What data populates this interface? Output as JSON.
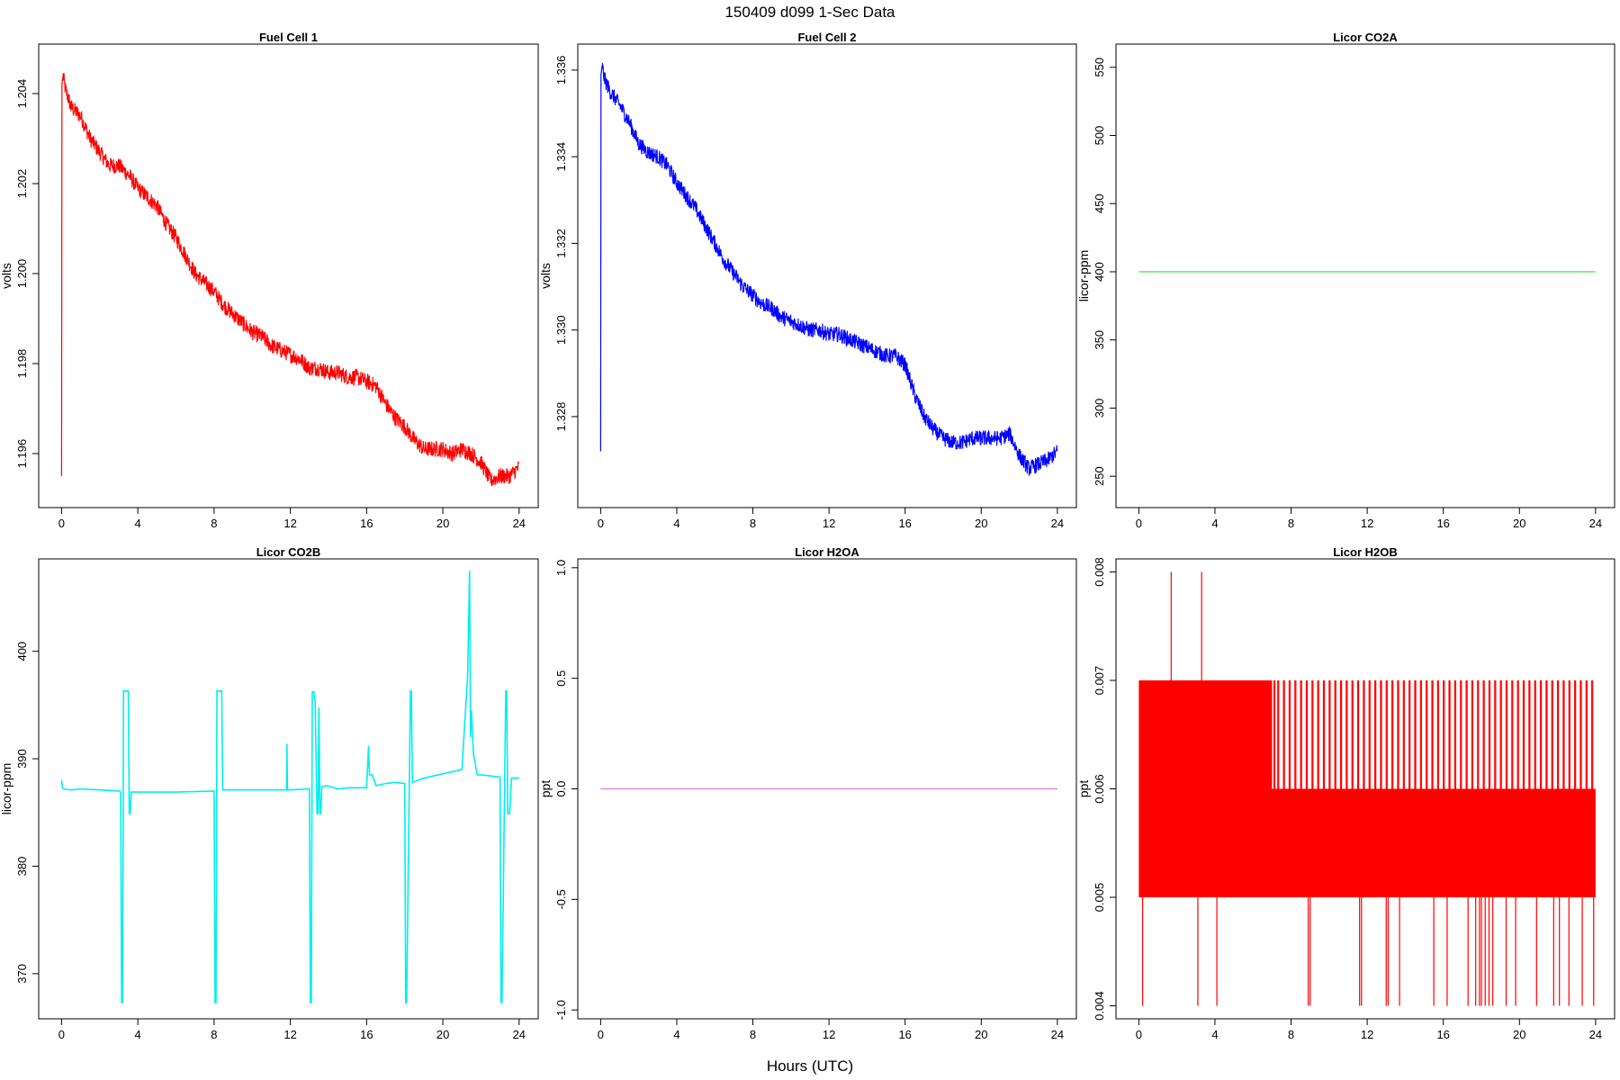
{
  "figure": {
    "title": "150409   d099   1-Sec Data",
    "xlabel": "Hours (UTC)"
  },
  "chart_data": [
    {
      "type": "line",
      "title": "Fuel Cell 1",
      "xlabel": "",
      "ylabel": "volts",
      "color": "#ff0000",
      "xlim": [
        -1.2,
        25
      ],
      "ylim": [
        1.1948,
        1.2051
      ],
      "xticks": [
        0,
        4,
        8,
        12,
        16,
        20,
        24
      ],
      "yticks": [
        1.196,
        1.198,
        1.2,
        1.202,
        1.204
      ],
      "ytick_labels": [
        "1.196",
        "1.198",
        "1.200",
        "1.202",
        "1.204"
      ],
      "series": [
        {
          "x": [
            0,
            0.02,
            0.08,
            0.2,
            0.5,
            1,
            1.5,
            2,
            2.5,
            3,
            3.5,
            4,
            4.5,
            5,
            5.5,
            6,
            6.5,
            7,
            7.5,
            8,
            8.5,
            9,
            9.5,
            10,
            10.5,
            11,
            11.5,
            12,
            12.5,
            13,
            13.5,
            14,
            14.5,
            15,
            15.5,
            16,
            16.5,
            17,
            17.5,
            18,
            18.5,
            19,
            19.5,
            20,
            20.5,
            21,
            21.5,
            22,
            22.5,
            23,
            23.5,
            24
          ],
          "y": [
            1.1955,
            1.2042,
            1.2044,
            1.2041,
            1.2037,
            1.2035,
            1.203,
            1.2027,
            1.2024,
            1.2024,
            1.2022,
            1.2019,
            1.2017,
            1.2015,
            1.2011,
            1.2008,
            1.2004,
            1.2,
            1.1998,
            1.1996,
            1.1993,
            1.1991,
            1.1989,
            1.1987,
            1.1986,
            1.1984,
            1.1983,
            1.1982,
            1.1981,
            1.1979,
            1.1979,
            1.1978,
            1.1978,
            1.1977,
            1.1977,
            1.1976,
            1.1975,
            1.1971,
            1.1968,
            1.1966,
            1.1963,
            1.1961,
            1.1961,
            1.1961,
            1.196,
            1.1961,
            1.196,
            1.1958,
            1.1954,
            1.1955,
            1.1955,
            1.1957
          ],
          "noise": 0.00018
        }
      ]
    },
    {
      "type": "line",
      "title": "Fuel Cell 2",
      "xlabel": "",
      "ylabel": "volts",
      "color": "#0000ff",
      "xlim": [
        -1.2,
        25
      ],
      "ylim": [
        1.3259,
        1.3366
      ],
      "xticks": [
        0,
        4,
        8,
        12,
        16,
        20,
        24
      ],
      "yticks": [
        1.328,
        1.33,
        1.332,
        1.334,
        1.336
      ],
      "ytick_labels": [
        "1.328",
        "1.330",
        "1.332",
        "1.334",
        "1.336"
      ],
      "series": [
        {
          "x": [
            0,
            0.02,
            0.08,
            0.2,
            0.5,
            1,
            1.5,
            2,
            2.5,
            3,
            3.5,
            4,
            4.5,
            5,
            5.5,
            6,
            6.5,
            7,
            7.5,
            8,
            8.5,
            9,
            9.5,
            10,
            10.5,
            11,
            11.5,
            12,
            12.5,
            13,
            13.5,
            14,
            14.5,
            15,
            15.5,
            16,
            16.5,
            17,
            17.5,
            18,
            18.5,
            19,
            19.5,
            20,
            20.5,
            21,
            21.5,
            22,
            22.5,
            23,
            23.5,
            24
          ],
          "y": [
            1.3272,
            1.3359,
            1.3361,
            1.3358,
            1.3355,
            1.3352,
            1.3348,
            1.3343,
            1.3341,
            1.334,
            1.3338,
            1.3334,
            1.3331,
            1.3328,
            1.3324,
            1.332,
            1.3316,
            1.3313,
            1.331,
            1.3308,
            1.3306,
            1.3305,
            1.3303,
            1.3302,
            1.3301,
            1.33,
            1.33,
            1.3299,
            1.3299,
            1.3298,
            1.3297,
            1.3296,
            1.3295,
            1.3294,
            1.3294,
            1.3292,
            1.3285,
            1.328,
            1.3277,
            1.3275,
            1.3274,
            1.3274,
            1.3275,
            1.3275,
            1.3275,
            1.3275,
            1.3276,
            1.3271,
            1.3268,
            1.3269,
            1.327,
            1.3272
          ],
          "noise": 0.00018
        }
      ]
    },
    {
      "type": "line",
      "title": "Licor CO2A",
      "xlabel": "",
      "ylabel": "licor-ppm",
      "color": "#66ee66",
      "xlim": [
        -1.2,
        25
      ],
      "ylim": [
        227,
        567
      ],
      "xticks": [
        0,
        4,
        8,
        12,
        16,
        20,
        24
      ],
      "yticks": [
        250,
        300,
        350,
        400,
        450,
        500,
        550
      ],
      "ytick_labels": [
        "250",
        "300",
        "350",
        "400",
        "450",
        "500",
        "550"
      ],
      "series": [
        {
          "x": [
            0,
            24
          ],
          "y": [
            400,
            400
          ],
          "noise": 0
        }
      ]
    },
    {
      "type": "line",
      "title": "Licor CO2B",
      "xlabel": "",
      "ylabel": "licor-ppm",
      "color": "#00eeee",
      "xlim": [
        -1.2,
        25
      ],
      "ylim": [
        365.8,
        408.6
      ],
      "xticks": [
        0,
        4,
        8,
        12,
        16,
        20,
        24
      ],
      "yticks": [
        370,
        380,
        390,
        400
      ],
      "ytick_labels": [
        "370",
        "380",
        "390",
        "400"
      ],
      "series": [
        {
          "x": [
            0,
            0.05,
            0.1,
            0.5,
            1,
            2,
            3,
            3.1,
            3.15,
            3.2,
            3.25,
            3.28,
            3.5,
            3.55,
            3.6,
            3.65,
            3.7,
            4.5,
            6,
            8,
            8.05,
            8.1,
            8.15,
            8.2,
            8.4,
            8.45,
            8.5,
            9,
            10,
            11.5,
            11.8,
            11.82,
            11.85,
            12,
            13,
            13.05,
            13.1,
            13.15,
            13.25,
            13.3,
            13.4,
            13.45,
            13.5,
            13.55,
            13.6,
            13.65,
            13.9,
            14.5,
            15,
            16,
            16.1,
            16.15,
            16.3,
            16.5,
            17,
            17.5,
            18,
            18.05,
            18.1,
            18.3,
            18.35,
            18.4,
            19,
            20,
            21,
            21.3,
            21.4,
            21.45,
            21.5,
            21.6,
            21.8,
            22,
            22.5,
            23,
            23.05,
            23.1,
            23.3,
            23.35,
            23.4,
            23.5,
            23.6,
            23.65,
            24
          ],
          "y": [
            388,
            387.3,
            387.2,
            387.1,
            387.2,
            387.1,
            387,
            386.9,
            367.3,
            367.3,
            396.3,
            396.3,
            396.3,
            384.9,
            384.9,
            386.9,
            386.9,
            386.9,
            386.9,
            387,
            367.3,
            367.3,
            396.3,
            396.3,
            396.3,
            387.1,
            387.1,
            387.1,
            387.1,
            387.1,
            387.1,
            391.4,
            387.1,
            387.1,
            387.2,
            367.3,
            367.3,
            396.2,
            396.2,
            395.3,
            384.9,
            384.9,
            394.8,
            384.9,
            384.9,
            387.4,
            387.5,
            387.2,
            387.3,
            387.3,
            391.2,
            388.5,
            388.5,
            387.5,
            387.7,
            387.8,
            387.7,
            367.3,
            367.3,
            396.3,
            396.3,
            387.8,
            388.2,
            388.6,
            389,
            397.8,
            407.5,
            392,
            394.5,
            390.5,
            388.5,
            388.5,
            388.4,
            388.3,
            367.3,
            367.3,
            396.3,
            396.3,
            384.9,
            384.9,
            388.2,
            388.2,
            388.2
          ],
          "noise": 0
        }
      ]
    },
    {
      "type": "line",
      "title": "Licor H2OA",
      "xlabel": "",
      "ylabel": "ppt",
      "color": "#dd88dd",
      "xlim": [
        -1.2,
        25
      ],
      "ylim": [
        -1.04,
        1.04
      ],
      "xticks": [
        0,
        4,
        8,
        12,
        16,
        20,
        24
      ],
      "yticks": [
        -1,
        -0.5,
        0,
        0.5,
        1
      ],
      "ytick_labels": [
        "-1.0",
        "-0.5",
        "0.0",
        "0.5",
        "1.0"
      ],
      "series": [
        {
          "x": [
            0,
            24
          ],
          "y": [
            0,
            0
          ],
          "noise": 0
        }
      ]
    },
    {
      "type": "area",
      "title": "Licor H2OB",
      "xlabel": "",
      "ylabel": "ppt",
      "color": "#ff0000",
      "xlim": [
        -1.2,
        25
      ],
      "ylim": [
        0.00388,
        0.00812
      ],
      "xticks": [
        0,
        4,
        8,
        12,
        16,
        20,
        24
      ],
      "yticks": [
        0.004,
        0.005,
        0.006,
        0.007,
        0.008
      ],
      "ytick_labels": [
        "0.004",
        "0.005",
        "0.006",
        "0.007",
        "0.008"
      ],
      "series": [
        {
          "band_x": [
            0,
            24
          ],
          "band_low": [
            0.005,
            0.005
          ],
          "band_high": [
            0.006,
            0.006
          ],
          "upper_band": {
            "x_start": 0,
            "x_end": 7,
            "low": 0.006,
            "high": 0.007
          },
          "spikes_to_007": [
            7.1,
            7.3,
            7.6,
            7.9,
            8.2,
            8.5,
            8.8,
            9.1,
            9.4,
            9.7,
            10,
            10.3,
            10.6,
            10.9,
            11.2,
            11.5,
            11.8,
            12.1,
            12.4,
            12.7,
            13,
            13.3,
            13.6,
            13.9,
            14.2,
            14.5,
            14.8,
            15.1,
            15.4,
            15.7,
            16,
            16.3,
            16.6,
            16.9,
            17.2,
            17.5,
            17.8,
            18.1,
            18.4,
            18.7,
            19,
            19.3,
            19.6,
            19.9,
            20.2,
            20.5,
            20.8,
            21.1,
            21.4,
            21.7,
            22,
            22.3,
            22.6,
            22.9,
            23.2,
            23.5,
            23.8
          ],
          "spikes_to_008": [
            1.7,
            3.3
          ],
          "spikes_to_004": [
            0.2,
            3.1,
            4.1,
            8.9,
            9.0,
            11.6,
            11.7,
            13.0,
            13.1,
            13.7,
            15.5,
            16.2,
            17.3,
            17.7,
            17.9,
            18.0,
            18.2,
            18.4,
            18.6,
            19.3,
            19.8,
            20.9,
            21.8,
            22.1,
            22.6,
            23.3,
            23.9
          ],
          "spikes_to_006": [
            0.6
          ]
        }
      ]
    }
  ]
}
